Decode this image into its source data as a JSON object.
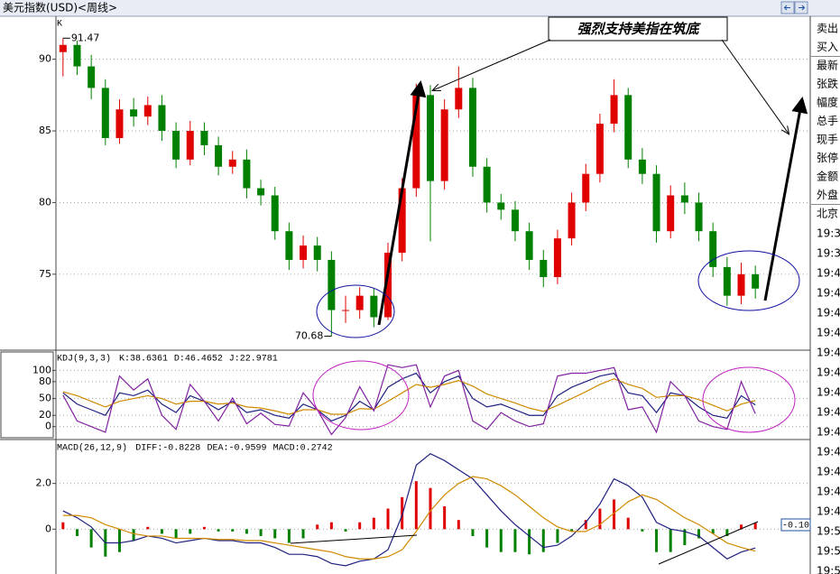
{
  "window": {
    "title": "美元指数(USD)<周线>",
    "sidebar_top": [
      "卖出",
      "买入",
      "最新",
      "张跌",
      "幅度",
      "总手",
      "现手",
      "张停",
      "金额",
      "外盘",
      "北京"
    ],
    "sidebar_times": [
      "19:3",
      "19:3",
      "19:4",
      "19:4",
      "19:4",
      "19:4",
      "19:4",
      "19:4",
      "19:4",
      "19:4",
      "19:4",
      "19:4",
      "19:4",
      "19:4",
      "19:4",
      "19:5",
      "19:5",
      "19:5"
    ]
  },
  "chart_data": [
    {
      "type": "candlestick",
      "title": "K",
      "annotations": {
        "max_label": "91.47",
        "min_label": "70.68",
        "callout": "强烈支持美指在筑底"
      },
      "up_color": "#e00000",
      "down_color": "#008000",
      "ylim": [
        69.7,
        93.0
      ],
      "yticks": [
        75,
        80,
        85,
        90
      ],
      "grid": true,
      "open": [
        90.5,
        91.0,
        89.5,
        88.0,
        84.5,
        86.5,
        86.0,
        86.8,
        85.0,
        83.0,
        85.0,
        84.0,
        82.5,
        83.0,
        81.0,
        80.5,
        78.0,
        76.0,
        77.0,
        76.0,
        72.5,
        72.5,
        73.5,
        72.0,
        76.5,
        81.0,
        87.5,
        81.5,
        86.5,
        88.0,
        82.5,
        80.0,
        79.5,
        78.0,
        76.0,
        74.8,
        77.5,
        80.0,
        82.0,
        85.5,
        87.5,
        83.0,
        82.0,
        78.0,
        80.5,
        80.0,
        78.0,
        75.5,
        73.5,
        75.0
      ],
      "high": [
        91.47,
        91.3,
        90.3,
        88.6,
        87.2,
        87.3,
        87.4,
        87.5,
        85.6,
        85.7,
        85.6,
        84.6,
        83.6,
        83.7,
        81.6,
        81.1,
        78.6,
        77.7,
        77.6,
        76.6,
        73.5,
        74.1,
        74.0,
        77.2,
        81.7,
        88.3,
        88.2,
        87.2,
        89.5,
        88.7,
        83.1,
        80.6,
        80.1,
        78.6,
        76.7,
        78.1,
        80.7,
        82.7,
        86.2,
        88.6,
        88.0,
        83.8,
        82.6,
        81.2,
        81.4,
        80.7,
        78.6,
        76.2,
        75.8,
        75.6
      ],
      "low": [
        88.8,
        88.9,
        87.2,
        84.0,
        84.1,
        85.3,
        85.4,
        84.3,
        82.4,
        82.6,
        83.3,
        81.9,
        82.0,
        80.3,
        79.8,
        77.4,
        75.3,
        75.4,
        75.2,
        70.68,
        71.6,
        71.9,
        71.3,
        71.8,
        75.9,
        80.4,
        77.3,
        80.9,
        85.9,
        81.8,
        79.3,
        78.8,
        77.3,
        75.3,
        74.1,
        74.3,
        77.0,
        79.4,
        81.4,
        84.9,
        82.4,
        81.3,
        77.2,
        77.5,
        79.2,
        77.3,
        74.8,
        72.8,
        72.9,
        73.3
      ],
      "close": [
        91.0,
        89.5,
        88.0,
        84.5,
        86.5,
        86.0,
        86.8,
        85.0,
        83.0,
        85.0,
        84.0,
        82.5,
        83.0,
        81.0,
        80.5,
        78.0,
        76.0,
        77.0,
        76.0,
        72.5,
        72.5,
        73.5,
        72.0,
        76.5,
        81.0,
        87.5,
        81.5,
        86.5,
        88.0,
        82.5,
        80.0,
        79.5,
        78.0,
        76.0,
        74.8,
        77.5,
        80.0,
        82.0,
        85.5,
        87.5,
        83.0,
        82.0,
        78.0,
        80.5,
        80.0,
        78.0,
        75.5,
        73.5,
        75.0,
        74.0
      ]
    },
    {
      "type": "line",
      "title": "KDJ(9,3,3)",
      "ylim": [
        -23,
        136
      ],
      "yticks": [
        0,
        20,
        50,
        80,
        100
      ],
      "grid": true,
      "series": [
        {
          "name": "K:38.6361",
          "color": "#202080",
          "values": [
            60,
            40,
            30,
            20,
            60,
            55,
            65,
            40,
            25,
            55,
            45,
            30,
            45,
            25,
            30,
            20,
            15,
            40,
            30,
            10,
            20,
            45,
            30,
            70,
            85,
            95,
            60,
            80,
            90,
            50,
            35,
            40,
            30,
            20,
            20,
            55,
            70,
            80,
            90,
            95,
            60,
            55,
            25,
            60,
            55,
            35,
            20,
            15,
            55,
            38.6361
          ]
        },
        {
          "name": "D:46.4652",
          "color": "#d08a00",
          "values": [
            62,
            55,
            45,
            35,
            45,
            50,
            55,
            50,
            40,
            45,
            45,
            40,
            42,
            35,
            33,
            28,
            22,
            30,
            30,
            22,
            22,
            32,
            31,
            45,
            60,
            75,
            70,
            75,
            82,
            72,
            58,
            50,
            42,
            33,
            27,
            38,
            50,
            62,
            75,
            85,
            75,
            68,
            52,
            55,
            55,
            48,
            38,
            28,
            40,
            46.4652
          ]
        },
        {
          "name": "J:22.9781",
          "color": "#8020a0",
          "values": [
            56,
            10,
            0,
            -10,
            90,
            65,
            85,
            20,
            -5,
            75,
            45,
            10,
            51,
            5,
            24,
            4,
            1,
            60,
            30,
            -14,
            16,
            71,
            28,
            110,
            105,
            110,
            35,
            90,
            100,
            10,
            -5,
            25,
            10,
            0,
            5,
            90,
            95,
            95,
            100,
            105,
            30,
            35,
            -10,
            80,
            55,
            10,
            0,
            -5,
            80,
            22.9781
          ]
        }
      ]
    },
    {
      "type": "macd",
      "title": "MACD(26,12,9)",
      "annotations": {
        "cursor_label": "-0.10"
      },
      "ylim": [
        -1.96,
        3.92
      ],
      "yticks": [
        0,
        {
          "value": 2,
          "label": "2.0"
        }
      ],
      "grid": true,
      "up_color": "#e00000",
      "down_color": "#008000",
      "series": [
        {
          "name": "DIFF:-0.8228",
          "color": "#202080",
          "values": [
            0.8,
            0.5,
            0.1,
            -0.6,
            -0.6,
            -0.5,
            -0.3,
            -0.4,
            -0.6,
            -0.5,
            -0.4,
            -0.5,
            -0.5,
            -0.6,
            -0.6,
            -0.8,
            -1.1,
            -1.1,
            -1.2,
            -1.5,
            -1.6,
            -1.4,
            -1.3,
            -0.9,
            0.6,
            2.8,
            3.3,
            3.0,
            2.6,
            2.2,
            1.5,
            0.8,
            0.2,
            -0.3,
            -0.8,
            -0.7,
            -0.3,
            0.3,
            1.1,
            2.2,
            1.9,
            1.4,
            0.3,
            0.0,
            -0.1,
            -0.3,
            -0.8,
            -1.3,
            -1.0,
            -0.8228
          ]
        },
        {
          "name": "DEA:-0.9599",
          "color": "#d08a00",
          "values": [
            0.6,
            0.6,
            0.5,
            0.2,
            0.0,
            -0.2,
            -0.3,
            -0.3,
            -0.4,
            -0.4,
            -0.4,
            -0.45,
            -0.45,
            -0.5,
            -0.5,
            -0.6,
            -0.7,
            -0.8,
            -0.9,
            -1.0,
            -1.2,
            -1.3,
            -1.3,
            -1.2,
            -0.9,
            -0.1,
            0.8,
            1.5,
            2.0,
            2.3,
            2.2,
            1.9,
            1.5,
            1.0,
            0.5,
            0.1,
            -0.1,
            -0.1,
            0.2,
            0.7,
            1.2,
            1.5,
            1.3,
            0.9,
            0.5,
            0.2,
            -0.2,
            -0.6,
            -0.8,
            -0.9599
          ]
        },
        {
          "name": "MACD:0.2742",
          "type": "bar",
          "values": [
            0.3,
            -0.3,
            -0.8,
            -1.2,
            -1.0,
            -0.5,
            0.1,
            -0.2,
            -0.4,
            -0.2,
            0.1,
            -0.1,
            -0.1,
            -0.2,
            -0.3,
            -0.4,
            -0.6,
            -0.4,
            0.2,
            0.3,
            -0.1,
            0.3,
            0.5,
            0.9,
            1.4,
            2.1,
            1.8,
            1.0,
            0.4,
            -0.3,
            -0.8,
            -1.0,
            -1.0,
            -1.1,
            -1.0,
            -0.6,
            -0.1,
            0.4,
            0.9,
            1.3,
            0.5,
            -0.1,
            -1.0,
            -1.0,
            -0.7,
            -0.4,
            -0.2,
            -0.3,
            0.2,
            0.2742
          ]
        }
      ]
    }
  ]
}
